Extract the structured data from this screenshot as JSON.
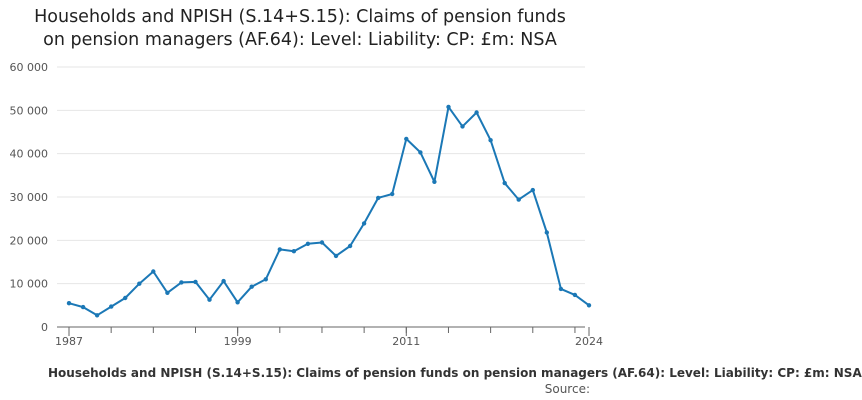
{
  "title": {
    "line1": "Households and NPISH (S.14+S.15): Claims of pension funds",
    "line2": "on pension managers (AF.64): Level: Liability: CP: £m: NSA"
  },
  "legend_label": "Households and NPISH (S.14+S.15): Claims of pension funds on pension managers (AF.64): Level: Liability: CP: £m: NSA",
  "source_label": "Source:",
  "colors": {
    "series": "#1b78b6",
    "grid": "#e6e6e6",
    "axis": "#666666"
  },
  "chart_data": {
    "type": "line",
    "title": "Households and NPISH (S.14+S.15): Claims of pension funds on pension managers (AF.64): Level: Liability: CP: £m: NSA",
    "xlabel": "",
    "ylabel": "",
    "x_tick_labels": [
      "1987",
      "1999",
      "2011",
      "2024"
    ],
    "y_tick_labels": [
      "0",
      "10 000",
      "20 000",
      "30 000",
      "40 000",
      "50 000",
      "60 000"
    ],
    "xlim": [
      1987,
      2024
    ],
    "ylim": [
      0,
      60000
    ],
    "grid": true,
    "legend": "bottom",
    "series": [
      {
        "name": "Households and NPISH (S.14+S.15): Claims of pension funds on pension managers (AF.64): Level: Liability: CP: £m: NSA",
        "x": [
          1987,
          1988,
          1989,
          1990,
          1991,
          1992,
          1993,
          1994,
          1995,
          1996,
          1997,
          1998,
          1999,
          2000,
          2001,
          2002,
          2003,
          2004,
          2005,
          2006,
          2007,
          2008,
          2009,
          2010,
          2011,
          2012,
          2013,
          2014,
          2015,
          2016,
          2017,
          2018,
          2019,
          2020,
          2021,
          2022,
          2023,
          2024
        ],
        "values": [
          5500,
          4600,
          2700,
          4700,
          6700,
          10000,
          12800,
          7900,
          10300,
          10400,
          6300,
          10600,
          5700,
          9300,
          11000,
          17900,
          17500,
          19200,
          19500,
          16400,
          18700,
          23900,
          29800,
          30700,
          43400,
          40300,
          33500,
          50800,
          46300,
          49500,
          43100,
          33200,
          29400,
          31600,
          21800,
          8800,
          7400,
          5000
        ]
      }
    ]
  }
}
